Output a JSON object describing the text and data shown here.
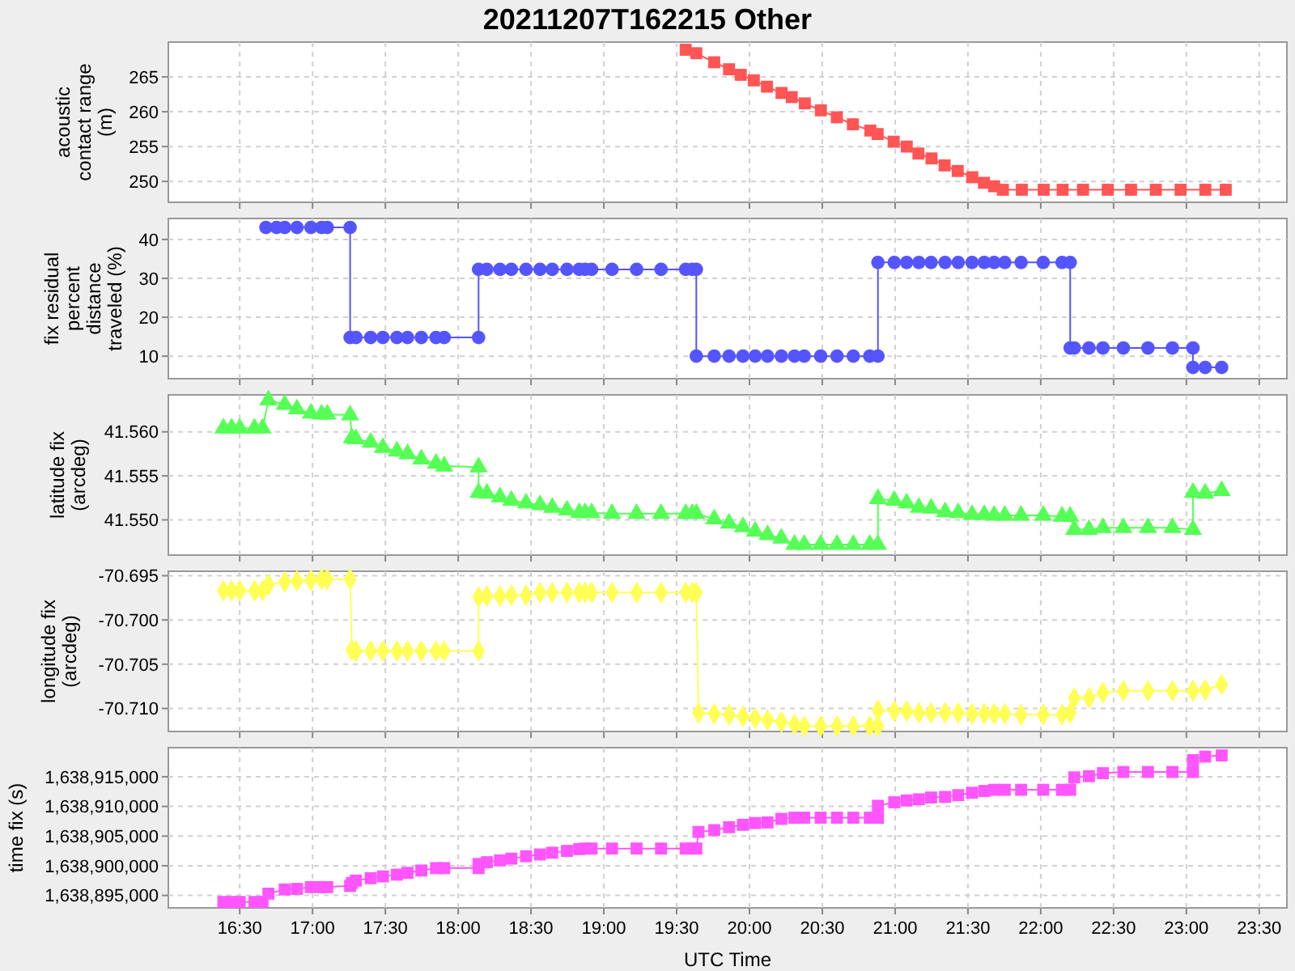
{
  "chart_data": [
    {
      "type": "line",
      "title": "20211207T162215 Other",
      "ylabel": "acoustic contact range (m)",
      "marker": "square",
      "line_style": "solid",
      "grid": true,
      "tick_labels": "y",
      "xlim": [
        16.01,
        23.69
      ],
      "xticks": [
        {
          "value": 16.5,
          "label": null
        },
        {
          "value": 17,
          "label": null
        },
        {
          "value": 17.5,
          "label": null
        },
        {
          "value": 18,
          "label": null
        },
        {
          "value": 18.5,
          "label": null
        },
        {
          "value": 19,
          "label": null
        },
        {
          "value": 19.5,
          "label": null
        },
        {
          "value": 20,
          "label": null
        },
        {
          "value": 20.5,
          "label": null
        },
        {
          "value": 21,
          "label": null
        },
        {
          "value": 21.5,
          "label": null
        },
        {
          "value": 22,
          "label": null
        },
        {
          "value": 22.5,
          "label": null
        },
        {
          "value": 23,
          "label": null
        },
        {
          "value": 23.5,
          "label": null
        }
      ],
      "ylim": [
        247,
        270
      ],
      "yticks": [
        250,
        255,
        260,
        265
      ],
      "series": [
        {
          "color": "#ff5555",
          "x": [
            19.562,
            19.635,
            19.758,
            19.86,
            19.94,
            20.03,
            20.12,
            20.22,
            20.29,
            20.38,
            20.49,
            20.6,
            20.71,
            20.83,
            20.88,
            20.99,
            21.08,
            21.16,
            21.25,
            21.34,
            21.43,
            21.53,
            21.61,
            21.68,
            21.74,
            21.87,
            22.02,
            22.15,
            22.29,
            22.46,
            22.62,
            22.79,
            22.96,
            23.13,
            23.27
          ],
          "values": [
            268.9,
            268.4,
            267.1,
            266.1,
            265.3,
            264.5,
            263.6,
            262.7,
            262.1,
            261.2,
            260.2,
            259.2,
            258.2,
            257.3,
            256.8,
            255.7,
            255,
            254,
            253.3,
            252.3,
            251.5,
            250.6,
            249.8,
            249.3,
            248.8,
            248.8,
            248.8,
            248.8,
            248.8,
            248.8,
            248.8,
            248.8,
            248.8,
            248.8,
            248.8
          ]
        }
      ]
    },
    {
      "type": "line",
      "ylabel": "fix residual percent distance traveled (%)",
      "marker": "circle",
      "line_style": "solid",
      "grid": true,
      "tick_labels": "y",
      "xlim": [
        16.01,
        23.69
      ],
      "xticks": [
        {
          "value": 16.5,
          "label": null
        },
        {
          "value": 17,
          "label": null
        },
        {
          "value": 17.5,
          "label": null
        },
        {
          "value": 18,
          "label": null
        },
        {
          "value": 18.5,
          "label": null
        },
        {
          "value": 19,
          "label": null
        },
        {
          "value": 19.5,
          "label": null
        },
        {
          "value": 20,
          "label": null
        },
        {
          "value": 20.5,
          "label": null
        },
        {
          "value": 21,
          "label": null
        },
        {
          "value": 21.5,
          "label": null
        },
        {
          "value": 22,
          "label": null
        },
        {
          "value": 22.5,
          "label": null
        },
        {
          "value": 23,
          "label": null
        },
        {
          "value": 23.5,
          "label": null
        }
      ],
      "ylim": [
        4.2,
        45.4
      ],
      "yticks": [
        10,
        20,
        30,
        40
      ],
      "series": [
        {
          "color": "#5555ff",
          "x": [
            16.68,
            16.753,
            16.809,
            16.893,
            16.989,
            17.062,
            17.101,
            17.258,
            17.258,
            17.298,
            17.399,
            17.483,
            17.579,
            17.652,
            17.747,
            17.848,
            17.904,
            18.14,
            18.14,
            18.197,
            18.287,
            18.365,
            18.466,
            18.562,
            18.646,
            18.747,
            18.831,
            18.871,
            18.916,
            19.056,
            19.225,
            19.393,
            19.562,
            19.607,
            19.635,
            19.635,
            19.758,
            19.86,
            19.955,
            20.039,
            20.124,
            20.219,
            20.309,
            20.376,
            20.489,
            20.601,
            20.713,
            20.826,
            20.882,
            20.882,
            20.994,
            21.079,
            21.163,
            21.247,
            21.343,
            21.433,
            21.528,
            21.612,
            21.68,
            21.753,
            21.865,
            22.017,
            22.146,
            22.202,
            22.202,
            22.23,
            22.331,
            22.427,
            22.567,
            22.736,
            22.904,
            23.045,
            23.045,
            23.129,
            23.242
          ],
          "values": [
            43.1,
            43.1,
            43.1,
            43.1,
            43.1,
            43.1,
            43.1,
            43.1,
            14.8,
            14.8,
            14.8,
            14.8,
            14.8,
            14.8,
            14.8,
            14.8,
            14.8,
            14.8,
            32.3,
            32.3,
            32.3,
            32.3,
            32.3,
            32.3,
            32.3,
            32.3,
            32.3,
            32.3,
            32.3,
            32.3,
            32.3,
            32.3,
            32.3,
            32.3,
            32.3,
            10,
            10,
            10,
            10,
            10,
            10,
            10,
            10,
            10,
            10,
            10,
            10,
            10,
            10,
            34.1,
            34.1,
            34.1,
            34.1,
            34.1,
            34.1,
            34.1,
            34.1,
            34.1,
            34.1,
            34.1,
            34.1,
            34.1,
            34.1,
            34.1,
            12.1,
            12.1,
            12.1,
            12.1,
            12.1,
            12.1,
            12.1,
            12.1,
            7.1,
            7.1,
            7.1
          ]
        }
      ]
    },
    {
      "type": "line",
      "ylabel": "latitude fix (arcdeg)",
      "marker": "triangle",
      "line_style": "solid",
      "grid": true,
      "tick_labels": "y",
      "xlim": [
        16.01,
        23.69
      ],
      "xticks": [
        {
          "value": 16.5,
          "label": null
        },
        {
          "value": 17,
          "label": null
        },
        {
          "value": 17.5,
          "label": null
        },
        {
          "value": 18,
          "label": null
        },
        {
          "value": 18.5,
          "label": null
        },
        {
          "value": 19,
          "label": null
        },
        {
          "value": 19.5,
          "label": null
        },
        {
          "value": 20,
          "label": null
        },
        {
          "value": 20.5,
          "label": null
        },
        {
          "value": 21,
          "label": null
        },
        {
          "value": 21.5,
          "label": null
        },
        {
          "value": 22,
          "label": null
        },
        {
          "value": 22.5,
          "label": null
        },
        {
          "value": 23,
          "label": null
        },
        {
          "value": 23.5,
          "label": null
        }
      ],
      "ylim": [
        41.546,
        41.5642
      ],
      "yticks": [
        {
          "value": 41.55,
          "label": "41.550"
        },
        {
          "value": 41.555,
          "label": "41.555"
        },
        {
          "value": 41.56,
          "label": "41.560"
        }
      ],
      "series": [
        {
          "color": "#55ff55",
          "x": [
            16.388,
            16.444,
            16.5,
            16.601,
            16.657,
            16.697,
            16.809,
            16.893,
            16.989,
            17.062,
            17.101,
            17.258,
            17.27,
            17.298,
            17.399,
            17.483,
            17.579,
            17.652,
            17.747,
            17.848,
            17.904,
            18.14,
            18.14,
            18.197,
            18.287,
            18.365,
            18.466,
            18.562,
            18.646,
            18.747,
            18.831,
            18.871,
            18.916,
            19.056,
            19.225,
            19.393,
            19.562,
            19.607,
            19.635,
            19.758,
            19.86,
            19.955,
            20.039,
            20.124,
            20.219,
            20.309,
            20.376,
            20.489,
            20.601,
            20.713,
            20.826,
            20.882,
            20.882,
            20.994,
            21.079,
            21.163,
            21.247,
            21.343,
            21.433,
            21.528,
            21.612,
            21.68,
            21.753,
            21.865,
            22.017,
            22.146,
            22.202,
            22.23,
            22.331,
            22.427,
            22.567,
            22.736,
            22.904,
            23.045,
            23.045,
            23.129,
            23.242
          ],
          "values": [
            41.5604,
            41.5604,
            41.5604,
            41.5604,
            41.5604,
            41.5636,
            41.5631,
            41.5626,
            41.5621,
            41.562,
            41.562,
            41.5619,
            41.5593,
            41.5592,
            41.5588,
            41.5582,
            41.5578,
            41.5575,
            41.5569,
            41.5564,
            41.5561,
            41.556,
            41.5531,
            41.553,
            41.5526,
            41.5522,
            41.5519,
            41.5517,
            41.5514,
            41.5511,
            41.5508,
            41.5508,
            41.5508,
            41.5507,
            41.5507,
            41.5507,
            41.5507,
            41.5507,
            41.5507,
            41.5501,
            41.5496,
            41.5492,
            41.5487,
            41.5483,
            41.5479,
            41.5472,
            41.5472,
            41.5472,
            41.5472,
            41.5472,
            41.5472,
            41.5472,
            41.5524,
            41.5522,
            41.5519,
            41.5514,
            41.5513,
            41.5509,
            41.5508,
            41.5506,
            41.5506,
            41.5505,
            41.5505,
            41.5505,
            41.5505,
            41.5504,
            41.5504,
            41.5489,
            41.5489,
            41.5491,
            41.5491,
            41.5491,
            41.5491,
            41.5489,
            41.5531,
            41.553,
            41.5533
          ]
        }
      ]
    },
    {
      "type": "line",
      "ylabel": "longitude fix (arcdeg)",
      "marker": "diamond",
      "line_style": "solid",
      "grid": true,
      "tick_labels": "y",
      "xlim": [
        16.01,
        23.69
      ],
      "xticks": [
        {
          "value": 16.5,
          "label": null
        },
        {
          "value": 17,
          "label": null
        },
        {
          "value": 17.5,
          "label": null
        },
        {
          "value": 18,
          "label": null
        },
        {
          "value": 18.5,
          "label": null
        },
        {
          "value": 19,
          "label": null
        },
        {
          "value": 19.5,
          "label": null
        },
        {
          "value": 20,
          "label": null
        },
        {
          "value": 20.5,
          "label": null
        },
        {
          "value": 21,
          "label": null
        },
        {
          "value": 21.5,
          "label": null
        },
        {
          "value": 22,
          "label": null
        },
        {
          "value": 22.5,
          "label": null
        },
        {
          "value": 23,
          "label": null
        },
        {
          "value": 23.5,
          "label": null
        }
      ],
      "ylim": [
        -70.7126,
        -70.6945
      ],
      "yticks": [
        {
          "value": -70.71,
          "label": "-70.710"
        },
        {
          "value": -70.705,
          "label": "-70.705"
        },
        {
          "value": -70.7,
          "label": "-70.700"
        },
        {
          "value": -70.695,
          "label": "-70.695"
        }
      ],
      "series": [
        {
          "color": "#ffff55",
          "x": [
            16.388,
            16.444,
            16.5,
            16.601,
            16.657,
            16.697,
            16.809,
            16.893,
            16.989,
            17.062,
            17.101,
            17.258,
            17.27,
            17.298,
            17.399,
            17.483,
            17.579,
            17.652,
            17.747,
            17.848,
            17.904,
            18.14,
            18.14,
            18.197,
            18.287,
            18.365,
            18.466,
            18.562,
            18.646,
            18.747,
            18.831,
            18.871,
            18.916,
            19.056,
            19.225,
            19.393,
            19.562,
            19.607,
            19.635,
            19.65,
            19.758,
            19.86,
            19.955,
            20.039,
            20.124,
            20.219,
            20.309,
            20.376,
            20.489,
            20.601,
            20.713,
            20.826,
            20.882,
            20.882,
            20.994,
            21.079,
            21.163,
            21.247,
            21.343,
            21.433,
            21.528,
            21.612,
            21.68,
            21.753,
            21.865,
            22.017,
            22.146,
            22.202,
            22.23,
            22.331,
            22.427,
            22.567,
            22.736,
            22.904,
            23.045,
            23.045,
            23.129,
            23.242
          ],
          "values": [
            -70.6967,
            -70.6967,
            -70.6967,
            -70.6967,
            -70.6967,
            -70.696,
            -70.6957,
            -70.6956,
            -70.6955,
            -70.6954,
            -70.6954,
            -70.6954,
            -70.7034,
            -70.7035,
            -70.7035,
            -70.7035,
            -70.7035,
            -70.7035,
            -70.7035,
            -70.7035,
            -70.7035,
            -70.7035,
            -70.6974,
            -70.6973,
            -70.6973,
            -70.6972,
            -70.6972,
            -70.6969,
            -70.6969,
            -70.6969,
            -70.6969,
            -70.6969,
            -70.6969,
            -70.6969,
            -70.6969,
            -70.6969,
            -70.6969,
            -70.6969,
            -70.6969,
            -70.7105,
            -70.7106,
            -70.7107,
            -70.7109,
            -70.7111,
            -70.7113,
            -70.7115,
            -70.7118,
            -70.712,
            -70.712,
            -70.712,
            -70.712,
            -70.712,
            -70.712,
            -70.7102,
            -70.7103,
            -70.7103,
            -70.7105,
            -70.7105,
            -70.7105,
            -70.7105,
            -70.7106,
            -70.7106,
            -70.7106,
            -70.7106,
            -70.7107,
            -70.7107,
            -70.7107,
            -70.7105,
            -70.7088,
            -70.7088,
            -70.7082,
            -70.708,
            -70.708,
            -70.708,
            -70.708,
            -70.708,
            -70.7079,
            -70.7073
          ]
        }
      ]
    },
    {
      "type": "line",
      "xlabel": "UTC Time",
      "ylabel": "time fix (s)",
      "marker": "square",
      "line_style": "solid",
      "grid": true,
      "xlim": [
        16.01,
        23.69
      ],
      "xticks": [
        {
          "value": 16.5,
          "label": "16:30"
        },
        {
          "value": 17,
          "label": "17:00"
        },
        {
          "value": 17.5,
          "label": "17:30"
        },
        {
          "value": 18,
          "label": "18:00"
        },
        {
          "value": 18.5,
          "label": "18:30"
        },
        {
          "value": 19,
          "label": "19:00"
        },
        {
          "value": 19.5,
          "label": "19:30"
        },
        {
          "value": 20,
          "label": "20:00"
        },
        {
          "value": 20.5,
          "label": "20:30"
        },
        {
          "value": 21,
          "label": "21:00"
        },
        {
          "value": 21.5,
          "label": "21:30"
        },
        {
          "value": 22,
          "label": "22:00"
        },
        {
          "value": 22.5,
          "label": "22:30"
        },
        {
          "value": 23,
          "label": "23:00"
        },
        {
          "value": 23.5,
          "label": "23:30"
        }
      ],
      "ylim": [
        1638892900,
        1638919900
      ],
      "yticks": [
        {
          "value": 1638895000,
          "label": "1,638,895,000"
        },
        {
          "value": 1638900000,
          "label": "1,638,900,000"
        },
        {
          "value": 1638905000,
          "label": "1,638,905,000"
        },
        {
          "value": 1638910000,
          "label": "1,638,910,000"
        },
        {
          "value": 1638915000,
          "label": "1,638,915,000"
        }
      ],
      "series": [
        {
          "color": "#ff55ff",
          "x": [
            16.388,
            16.444,
            16.5,
            16.601,
            16.657,
            16.697,
            16.809,
            16.893,
            16.989,
            17.062,
            17.101,
            17.258,
            17.27,
            17.298,
            17.399,
            17.483,
            17.579,
            17.652,
            17.747,
            17.848,
            17.904,
            18.14,
            18.14,
            18.197,
            18.287,
            18.365,
            18.466,
            18.562,
            18.646,
            18.747,
            18.831,
            18.871,
            18.916,
            19.056,
            19.225,
            19.393,
            19.562,
            19.607,
            19.635,
            19.65,
            19.758,
            19.86,
            19.955,
            20.039,
            20.124,
            20.219,
            20.309,
            20.376,
            20.489,
            20.601,
            20.713,
            20.826,
            20.882,
            20.882,
            20.994,
            21.079,
            21.163,
            21.247,
            21.343,
            21.433,
            21.528,
            21.612,
            21.68,
            21.753,
            21.865,
            22.017,
            22.146,
            22.202,
            22.23,
            22.331,
            22.427,
            22.567,
            22.736,
            22.904,
            23.045,
            23.045,
            23.129,
            23.242
          ],
          "values": [
            1638893900,
            1638893900,
            1638893900,
            1638893900,
            1638893900,
            1638895300,
            1638896000,
            1638896100,
            1638896400,
            1638896400,
            1638896400,
            1638896600,
            1638897100,
            1638897500,
            1638897900,
            1638898200,
            1638898500,
            1638898800,
            1638899200,
            1638899600,
            1638899600,
            1638899600,
            1638900300,
            1638900600,
            1638900900,
            1638901200,
            1638901600,
            1638901900,
            1638902200,
            1638902500,
            1638902800,
            1638902900,
            1638902900,
            1638902900,
            1638902900,
            1638902900,
            1638902900,
            1638902900,
            1638902900,
            1638905700,
            1638906000,
            1638906500,
            1638906900,
            1638907200,
            1638907300,
            1638907900,
            1638908100,
            1638908100,
            1638908100,
            1638908100,
            1638908100,
            1638908100,
            1638908100,
            1638910100,
            1638910700,
            1638911000,
            1638911200,
            1638911500,
            1638911600,
            1638911900,
            1638912300,
            1638912600,
            1638912800,
            1638912800,
            1638912800,
            1638912800,
            1638912800,
            1638912800,
            1638914900,
            1638915100,
            1638915600,
            1638915800,
            1638915800,
            1638915800,
            1638915800,
            1638917800,
            1638918400,
            1638918600
          ]
        }
      ]
    }
  ]
}
